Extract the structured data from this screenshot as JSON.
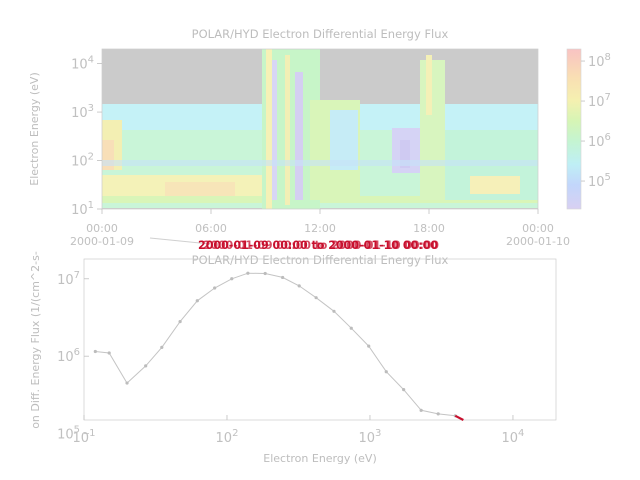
{
  "chart_data": [
    {
      "type": "heatmap",
      "title": "POLAR/HYD  Electron Differential Energy Flux",
      "ylabel": "Electron Energy (eV)",
      "y_scale": "log",
      "ylim": [
        10,
        20000
      ],
      "y_ticks": [
        {
          "value": 10,
          "base": "10",
          "exp": "1"
        },
        {
          "value": 100,
          "base": "10",
          "exp": "2"
        },
        {
          "value": 1000,
          "base": "10",
          "exp": "3"
        },
        {
          "value": 10000,
          "base": "10",
          "exp": "4"
        }
      ],
      "x_ticks": [
        {
          "hour": 0,
          "time": "00:00",
          "date": "2000-01-09"
        },
        {
          "hour": 6,
          "time": "06:00",
          "date": ""
        },
        {
          "hour": 12,
          "time": "12:00",
          "date": ""
        },
        {
          "hour": 18,
          "time": "18:00",
          "date": ""
        },
        {
          "hour": 24,
          "time": "00:00",
          "date": "2000-01-10"
        }
      ],
      "xlim_hours": [
        0,
        24
      ],
      "colorbar": {
        "scale": "log",
        "range": [
          20000,
          200000000
        ],
        "ticks": [
          {
            "value": 100000,
            "base": "10",
            "exp": "5"
          },
          {
            "value": 1000000,
            "base": "10",
            "exp": "6"
          },
          {
            "value": 10000000,
            "base": "10",
            "exp": "7"
          },
          {
            "value": 100000000,
            "base": "10",
            "exp": "8"
          }
        ]
      },
      "overlay_text": "2000-01-09 00:00 to 2000-01-10 00:00",
      "overlay_color": "#c8102e"
    },
    {
      "type": "line",
      "title": "POLAR/HYD  Electron Differential Energy Flux",
      "xlabel": "Electron Energy (eV)",
      "ylabel": "on Diff. Energy Flux (1/(cm^2-s-",
      "x_scale": "log",
      "y_scale": "log",
      "xlim": [
        10,
        20000
      ],
      "ylim": [
        150000,
        18000000
      ],
      "x_ticks": [
        {
          "value": 10,
          "base": "10",
          "exp": "1"
        },
        {
          "value": 100,
          "base": "10",
          "exp": "2"
        },
        {
          "value": 1000,
          "base": "10",
          "exp": "3"
        },
        {
          "value": 10000,
          "base": "10",
          "exp": "4"
        }
      ],
      "y_ticks": [
        {
          "value": 100000,
          "base": "10",
          "exp": "5"
        },
        {
          "value": 1000000,
          "base": "10",
          "exp": "6"
        },
        {
          "value": 10000000,
          "base": "10",
          "exp": "7"
        }
      ],
      "series": [
        {
          "x": [
            12,
            15,
            20,
            27,
            35,
            47,
            62,
            82,
            108,
            140,
            185,
            245,
            320,
            420,
            560,
            740,
            980,
            1300,
            1720,
            2280,
            3000,
            3950
          ],
          "y": [
            1150000,
            1100000,
            450000,
            750000,
            1300000,
            2800000,
            5200000,
            7600000,
            10000000,
            11800000,
            11700000,
            10400000,
            8100000,
            5700000,
            3800000,
            2300000,
            1350000,
            630000,
            370000,
            200000,
            180000,
            170000
          ]
        }
      ],
      "highlight_segment": {
        "x": [
          3950,
          4500
        ],
        "y": [
          170000,
          100000
        ],
        "color": "#c8102e"
      }
    }
  ]
}
